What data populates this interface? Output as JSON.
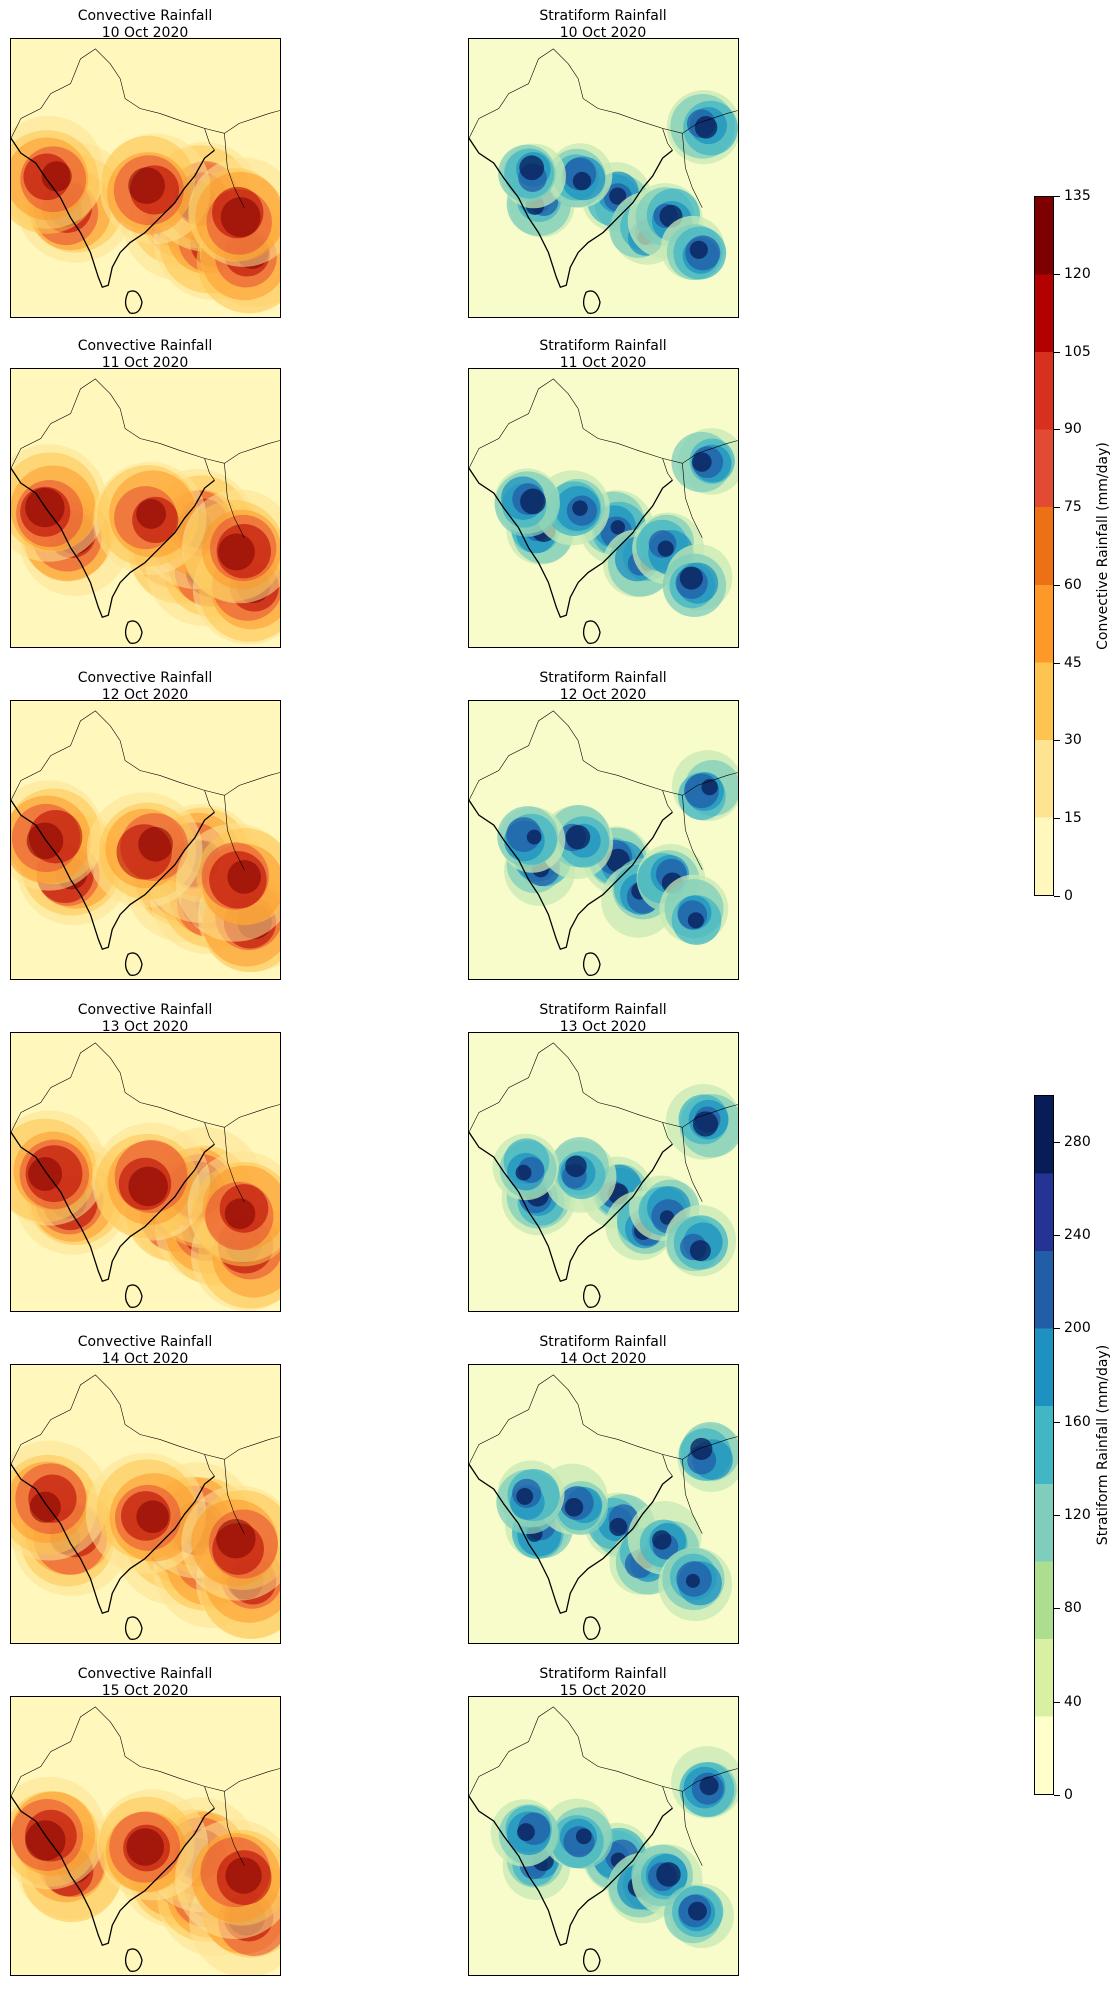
{
  "panels": [
    {
      "row": 0,
      "conv_title": "Convective Rainfall",
      "strat_title": "Stratiform Rainfall",
      "date": "10 Oct 2020"
    },
    {
      "row": 1,
      "conv_title": "Convective Rainfall",
      "strat_title": "Stratiform Rainfall",
      "date": "11 Oct 2020"
    },
    {
      "row": 2,
      "conv_title": "Convective Rainfall",
      "strat_title": "Stratiform Rainfall",
      "date": "12 Oct 2020"
    },
    {
      "row": 3,
      "conv_title": "Convective Rainfall",
      "strat_title": "Stratiform Rainfall",
      "date": "13 Oct 2020"
    },
    {
      "row": 4,
      "conv_title": "Convective Rainfall",
      "strat_title": "Stratiform Rainfall",
      "date": "14 Oct 2020"
    },
    {
      "row": 5,
      "conv_title": "Convective Rainfall",
      "strat_title": "Stratiform Rainfall",
      "date": "15 Oct 2020"
    }
  ],
  "colorbars": {
    "convective": {
      "label": "Convective Rainfall (mm/day)",
      "ticks": [
        "0",
        "15",
        "30",
        "45",
        "60",
        "75",
        "90",
        "105",
        "120",
        "135"
      ],
      "min": 0,
      "max": 135,
      "colors": [
        "#fff7bc",
        "#fee391",
        "#fec44f",
        "#fe9929",
        "#ec7014",
        "#e34a33",
        "#d7301f",
        "#b30000",
        "#7f0000"
      ]
    },
    "stratiform": {
      "label": "Stratiform Rainfall (mm/day)",
      "ticks": [
        "0",
        "40",
        "80",
        "120",
        "160",
        "200",
        "240",
        "280"
      ],
      "min": 0,
      "max": 300,
      "colors": [
        "#ffffcc",
        "#d9f0a3",
        "#addd8e",
        "#7fcdbb",
        "#41b6c4",
        "#1d91c0",
        "#225ea8",
        "#253494",
        "#081d58"
      ]
    }
  }
}
